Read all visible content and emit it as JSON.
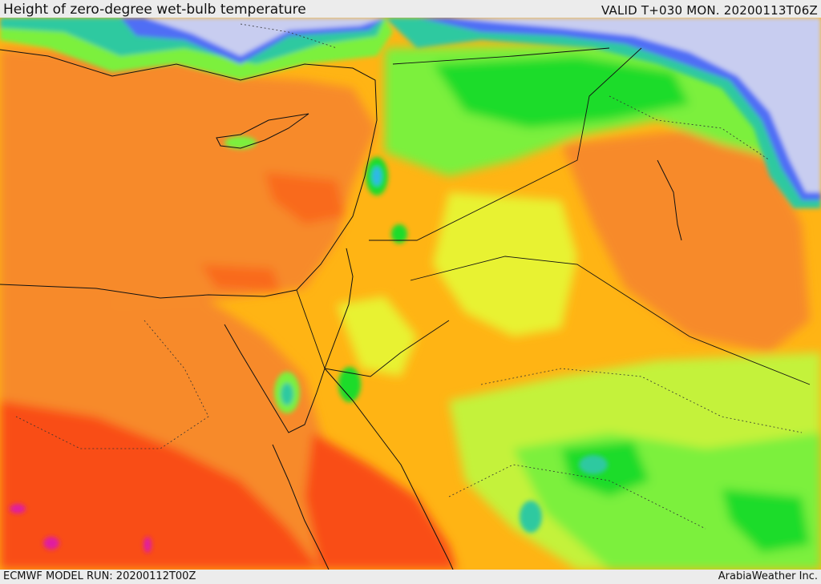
{
  "header": {
    "title": "Height of zero-degree wet-bulb temperature",
    "valid_time": "VALID T+030 MON. 20200113T06Z"
  },
  "footer": {
    "model_run": "ECMWF MODEL RUN: 20200112T00Z",
    "credit": "ArabiaWeather Inc."
  },
  "colors": {
    "lavender": "#c8cdf0",
    "blue": "#4f6ef5",
    "cyan": "#2fb8e8",
    "teal": "#2ec9a0",
    "green": "#1fdc2a",
    "light_green": "#7cf03c",
    "yellow_green": "#c4f23a",
    "yellow": "#e8f230",
    "gold": "#ffb414",
    "orange": "#f78a2c",
    "red_orange": "#f96a1e",
    "red": "#f94e16",
    "magenta": "#e01aa0"
  }
}
